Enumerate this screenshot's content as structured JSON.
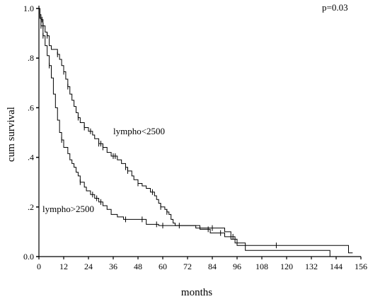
{
  "chart_data": {
    "type": "line",
    "subtype": "kaplan-meier step",
    "title": "",
    "xlabel": "months",
    "ylabel": "cum survival",
    "xlim": [
      0,
      156
    ],
    "ylim": [
      0,
      1.0
    ],
    "x_ticks": [
      0,
      12,
      24,
      36,
      48,
      60,
      72,
      84,
      96,
      108,
      120,
      132,
      144,
      156
    ],
    "x_tick_labels": [
      "0",
      "12",
      "24",
      "36",
      "48",
      "60",
      "72",
      "84",
      "96",
      "108",
      "120",
      "132",
      "144",
      "156"
    ],
    "y_ticks": [
      0,
      0.2,
      0.4,
      0.6,
      0.8,
      1.0
    ],
    "y_tick_labels": [
      "0.0",
      ".2",
      ".4",
      ".6",
      ".8",
      "1.0"
    ],
    "grid": false,
    "legend": "none",
    "annotations": [
      {
        "text": "p=0.03",
        "position": "top-right"
      },
      {
        "text": "lympho<2500",
        "series": "lympho<2500"
      },
      {
        "text": "lympho>2500",
        "series": "lympho>2500"
      }
    ],
    "series": [
      {
        "name": "lympho<2500",
        "steps": [
          [
            0,
            1.0
          ],
          [
            0.5,
            0.975
          ],
          [
            1,
            0.955
          ],
          [
            2,
            0.93
          ],
          [
            3,
            0.905
          ],
          [
            4,
            0.89
          ],
          [
            5,
            0.85
          ],
          [
            6,
            0.835
          ],
          [
            9,
            0.815
          ],
          [
            10,
            0.795
          ],
          [
            11,
            0.77
          ],
          [
            12,
            0.745
          ],
          [
            13,
            0.715
          ],
          [
            14,
            0.685
          ],
          [
            15,
            0.655
          ],
          [
            16,
            0.63
          ],
          [
            17,
            0.605
          ],
          [
            18,
            0.58
          ],
          [
            19,
            0.56
          ],
          [
            20,
            0.54
          ],
          [
            22,
            0.52
          ],
          [
            24,
            0.505
          ],
          [
            26,
            0.49
          ],
          [
            27,
            0.475
          ],
          [
            29,
            0.455
          ],
          [
            31,
            0.44
          ],
          [
            33,
            0.42
          ],
          [
            35,
            0.405
          ],
          [
            38,
            0.39
          ],
          [
            40,
            0.375
          ],
          [
            42,
            0.36
          ],
          [
            43,
            0.345
          ],
          [
            45,
            0.325
          ],
          [
            46,
            0.31
          ],
          [
            48,
            0.295
          ],
          [
            50,
            0.285
          ],
          [
            52,
            0.275
          ],
          [
            54,
            0.26
          ],
          [
            56,
            0.245
          ],
          [
            57,
            0.23
          ],
          [
            58,
            0.215
          ],
          [
            59,
            0.2
          ],
          [
            61,
            0.19
          ],
          [
            62,
            0.18
          ],
          [
            63,
            0.17
          ],
          [
            64,
            0.15
          ],
          [
            65,
            0.135
          ],
          [
            66,
            0.125
          ],
          [
            76,
            0.115
          ],
          [
            90,
            0.1
          ],
          [
            93,
            0.07
          ],
          [
            96,
            0.045
          ],
          [
            107,
            0.045
          ],
          [
            108,
            0.045
          ],
          [
            115,
            0.045
          ],
          [
            150,
            0.045
          ],
          [
            150,
            0.015
          ],
          [
            152,
            0.015
          ]
        ],
        "censor_marks_x": [
          0.5,
          1,
          1.5,
          2,
          4,
          9,
          12,
          14,
          19,
          22,
          25,
          29,
          30,
          31,
          36,
          37,
          42,
          43,
          48,
          55,
          59,
          62,
          68,
          84,
          115
        ]
      },
      {
        "name": "lympho>2500",
        "steps": [
          [
            0,
            1.0
          ],
          [
            0.5,
            0.96
          ],
          [
            1,
            0.93
          ],
          [
            2,
            0.89
          ],
          [
            3,
            0.85
          ],
          [
            4,
            0.81
          ],
          [
            5,
            0.77
          ],
          [
            6,
            0.72
          ],
          [
            7,
            0.655
          ],
          [
            8,
            0.6
          ],
          [
            9,
            0.55
          ],
          [
            10,
            0.5
          ],
          [
            11,
            0.47
          ],
          [
            12,
            0.44
          ],
          [
            14,
            0.415
          ],
          [
            15,
            0.39
          ],
          [
            16,
            0.375
          ],
          [
            17,
            0.36
          ],
          [
            18,
            0.34
          ],
          [
            19,
            0.325
          ],
          [
            20,
            0.3
          ],
          [
            22,
            0.28
          ],
          [
            23,
            0.265
          ],
          [
            25,
            0.25
          ],
          [
            27,
            0.235
          ],
          [
            29,
            0.22
          ],
          [
            31,
            0.205
          ],
          [
            33,
            0.19
          ],
          [
            35,
            0.17
          ],
          [
            38,
            0.16
          ],
          [
            41,
            0.15
          ],
          [
            50,
            0.15
          ],
          [
            52,
            0.13
          ],
          [
            58,
            0.125
          ],
          [
            76,
            0.125
          ],
          [
            78,
            0.11
          ],
          [
            83,
            0.095
          ],
          [
            85,
            0.095
          ],
          [
            90,
            0.08
          ],
          [
            95,
            0.055
          ],
          [
            100,
            0.025
          ],
          [
            141,
            0.0
          ]
        ],
        "censor_marks_x": [
          1,
          2,
          5,
          11,
          20,
          26,
          28,
          30,
          42,
          50,
          57,
          60,
          82,
          88,
          94
        ]
      }
    ]
  }
}
